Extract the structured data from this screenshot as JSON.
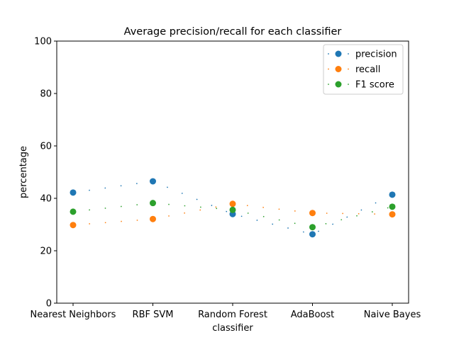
{
  "chart_data": {
    "type": "scatter",
    "title": "Average precision/recall for each classifier",
    "xlabel": "classifier",
    "ylabel": "percentage",
    "ylim": [
      0,
      100
    ],
    "yticks": [
      "0",
      "20",
      "40",
      "60",
      "80",
      "100"
    ],
    "categories": [
      "Nearest Neighbors",
      "RBF SVM",
      "Random Forest",
      "AdaBoost",
      "Naive Bayes"
    ],
    "grid": false,
    "legend_position": "top-right",
    "series": [
      {
        "name": "precision",
        "color": "#1f77b4",
        "values": [
          42.2,
          46.5,
          34.0,
          26.3,
          41.4
        ]
      },
      {
        "name": "recall",
        "color": "#ff7f0e",
        "values": [
          29.8,
          32.1,
          37.9,
          34.4,
          33.9
        ]
      },
      {
        "name": "F1 score",
        "color": "#2ca02c",
        "values": [
          34.9,
          38.2,
          35.6,
          29.0,
          36.8
        ]
      }
    ]
  }
}
